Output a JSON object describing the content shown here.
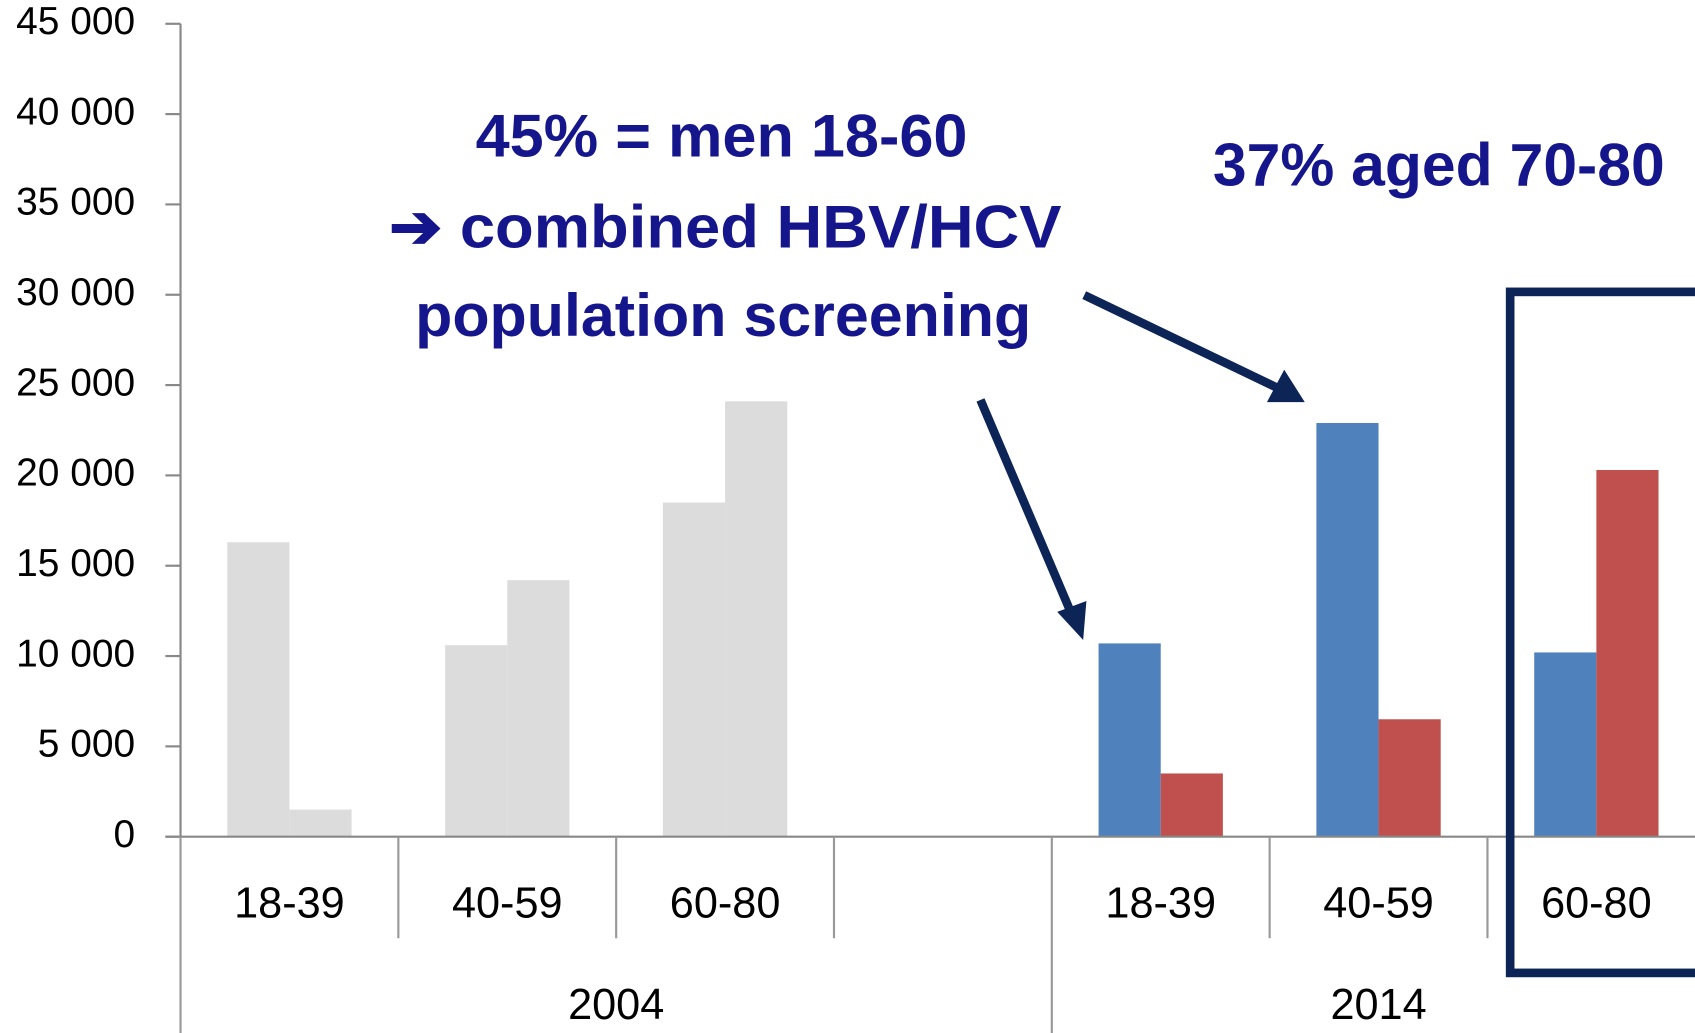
{
  "chart_data": {
    "type": "bar",
    "categories": [
      "18-39",
      "40-59",
      "60-80",
      null,
      "18-39",
      "40-59",
      "60-80"
    ],
    "group_labels": [
      "2004",
      "2014"
    ],
    "series": [
      {
        "values": [
          16300,
          10600,
          18500,
          null,
          10700,
          22900,
          10200
        ],
        "colors": [
          "#dcdcdc",
          "#dcdcdc",
          "#dcdcdc",
          null,
          "#4f81bd",
          "#4f81bd",
          "#4f81bd"
        ]
      },
      {
        "values": [
          1500,
          14200,
          24100,
          null,
          3500,
          6500,
          20300
        ],
        "colors": [
          "#dcdcdc",
          "#dcdcdc",
          "#dcdcdc",
          null,
          "#c0504d",
          "#c0504d",
          "#c0504d"
        ]
      }
    ],
    "ylim": [
      0,
      45000
    ],
    "yticks": [
      0,
      {
        "value": 5000,
        "label": "5 000"
      },
      {
        "value": 10000,
        "label": "10 000"
      },
      {
        "value": 15000,
        "label": "15 000"
      },
      {
        "value": 20000,
        "label": "20 000"
      },
      {
        "value": 25000,
        "label": "25 000"
      },
      {
        "value": 30000,
        "label": "30 000"
      },
      {
        "value": 35000,
        "label": "35 000"
      },
      {
        "value": 40000,
        "label": "40 000"
      },
      {
        "value": 45000,
        "label": "45 000"
      }
    ],
    "annotations": [
      "45% = men 18-60",
      "➔ combined HBV/HCV",
      "population screening",
      "37% aged 70-80"
    ],
    "grid": false
  }
}
